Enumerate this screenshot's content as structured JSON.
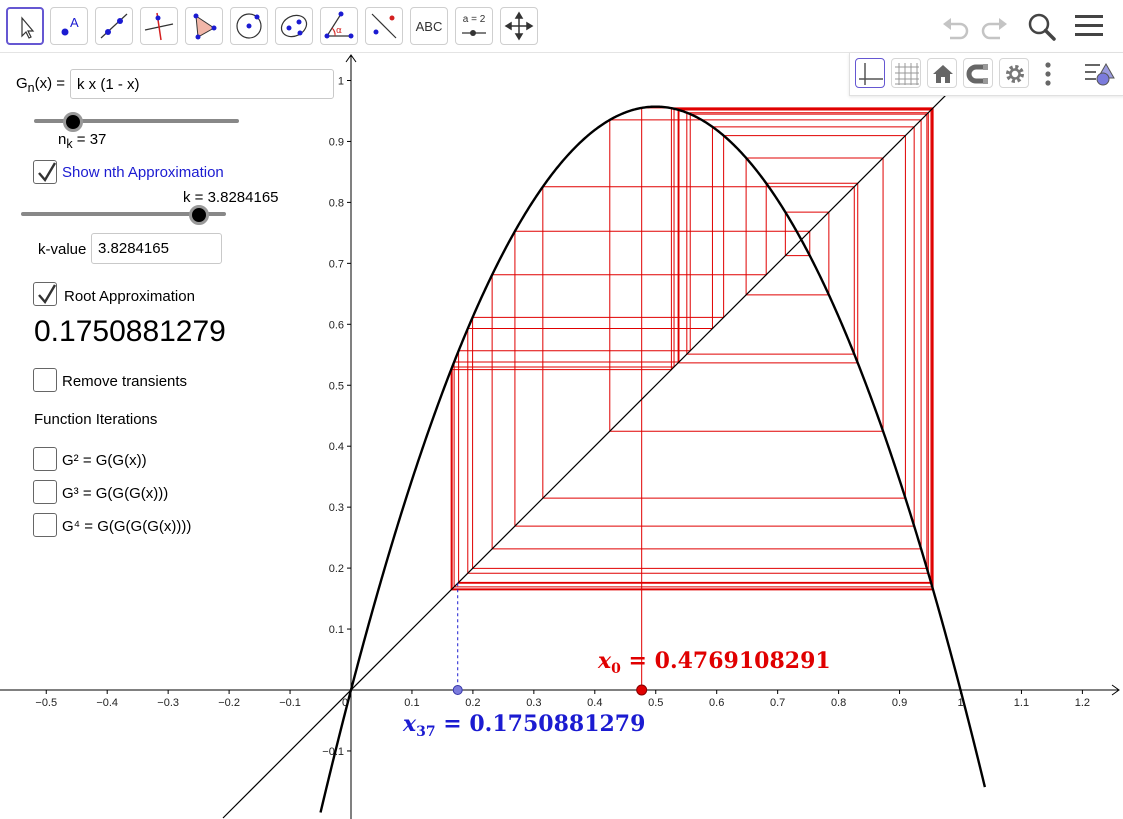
{
  "toolbar": {
    "tools": [
      {
        "name": "move-tool-button",
        "icon": "cursor-arrow-icon"
      },
      {
        "name": "point-tool-button",
        "icon": "point-icon",
        "label": "A"
      },
      {
        "name": "line-tool-button",
        "icon": "line-through-points-icon"
      },
      {
        "name": "perpendicular-tool-button",
        "icon": "perpendicular-line-icon"
      },
      {
        "name": "polygon-tool-button",
        "icon": "polygon-icon"
      },
      {
        "name": "circle-tool-button",
        "icon": "circle-center-point-icon"
      },
      {
        "name": "conic-tool-button",
        "icon": "ellipse-icon"
      },
      {
        "name": "angle-tool-button",
        "icon": "angle-icon",
        "label": "α"
      },
      {
        "name": "reflect-tool-button",
        "icon": "reflect-about-line-icon"
      },
      {
        "name": "text-tool-button",
        "icon": "text-icon",
        "label": "ABC"
      },
      {
        "name": "slider-tool-button",
        "icon": "slider-icon",
        "label": "a = 2"
      },
      {
        "name": "move-graphics-tool-button",
        "icon": "move-arrows-icon"
      }
    ],
    "right": [
      "undo-icon",
      "redo-icon",
      "search-icon",
      "menu-icon"
    ]
  },
  "graphics_style_bar": [
    "axes-icon",
    "grid-icon",
    "home-icon",
    "magnet-icon",
    "gear-icon",
    "more-vertical-icon",
    "style-bar-toggle-icon"
  ],
  "sidebar": {
    "function_label_G": "G",
    "function_label_sub": "n",
    "function_label_rest": "(x) =",
    "function_value": "k x (1 - x)",
    "n_slider": {
      "label_main": "n",
      "label_sub": "k",
      "label_rest": " = 37",
      "value": 37,
      "fraction": 0.19
    },
    "show_nth": {
      "label": "Show nth Approximation",
      "checked": true
    },
    "k_slider": {
      "label": "k = 3.8284165",
      "value": 3.8284165,
      "fraction": 0.87
    },
    "k_value_label": "k-value",
    "k_value_input": "3.8284165",
    "root_approx": {
      "label": "Root Approximation",
      "checked": true
    },
    "root_value": "0.1750881279",
    "remove_transients": {
      "label": "Remove transients",
      "checked": false
    },
    "function_iterations_title": "Function Iterations",
    "iterations": [
      {
        "label": "G² = G(G(x))",
        "checked": false
      },
      {
        "label": "G³ = G(G(G(x)))",
        "checked": false
      },
      {
        "label": "G⁴ = G(G(G(G(x))))",
        "checked": false
      }
    ]
  },
  "chart_data": {
    "type": "line",
    "function": "k x (1 - x)",
    "k": 3.8284165,
    "x0": 0.4769108291,
    "n": 37,
    "xn": 0.1750881279,
    "x_ticks": [
      "−0.5",
      "−0.4",
      "−0.3",
      "−0.2",
      "−0.1",
      "0",
      "0.1",
      "0.2",
      "0.3",
      "0.4",
      "0.5",
      "0.6",
      "0.7",
      "0.8",
      "0.9",
      "1",
      "1.1",
      "1.2"
    ],
    "y_ticks": [
      "−0.1",
      "0.1",
      "0.2",
      "0.3",
      "0.4",
      "0.5",
      "0.6",
      "0.7",
      "0.8",
      "0.9",
      "1"
    ],
    "xlim": [
      -0.57,
      1.26
    ],
    "ylim": [
      -0.21,
      1.04
    ],
    "x0_label": "0.4769108291",
    "xn_label": "0.1750881279",
    "x0_label_sub": "0",
    "xn_label_sub": "37",
    "colors": {
      "curve": "#000000",
      "cobweb": "#e00000",
      "x0": "#e00000",
      "xn": "#1b1bd1"
    }
  }
}
